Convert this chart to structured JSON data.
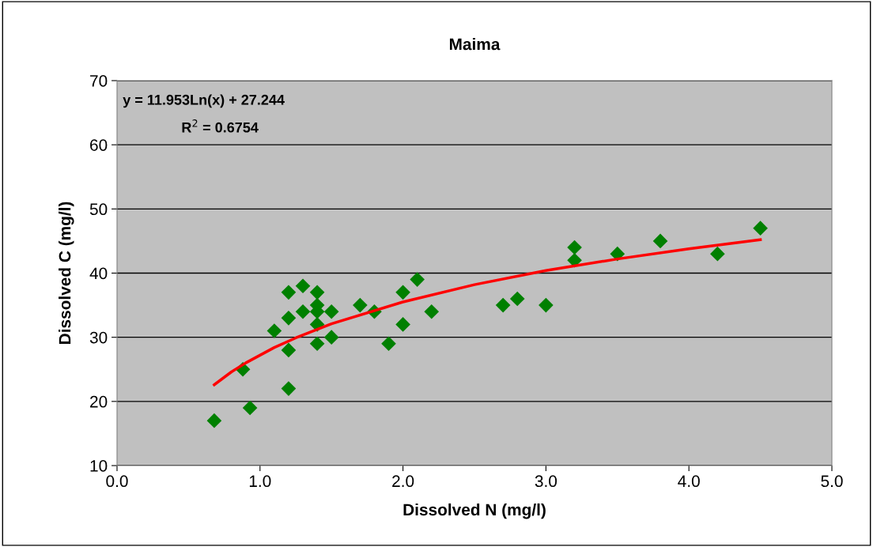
{
  "chart_data": {
    "type": "scatter",
    "title": "Maima",
    "xlabel": "Dissolved N (mg/l)",
    "ylabel": "Dissolved C (mg/l)",
    "xlim": [
      0,
      5
    ],
    "xticks": [
      {
        "value": 0,
        "label": "0.0"
      },
      {
        "value": 1,
        "label": "1.0"
      },
      {
        "value": 2,
        "label": "2.0"
      },
      {
        "value": 3,
        "label": "3.0"
      },
      {
        "value": 4,
        "label": "4.0"
      },
      {
        "value": 5,
        "label": "5.0"
      }
    ],
    "ylim": [
      10,
      70
    ],
    "yticks": [
      10,
      20,
      30,
      40,
      50,
      60,
      70
    ],
    "grid": "y",
    "legend": false,
    "annotations": [
      "y = 11.953Ln(x) + 27.244",
      "R$^{2}$ = 0.6754"
    ],
    "series": [
      {
        "color": "#008000",
        "marker": "diamond",
        "x": [
          0.68,
          0.88,
          0.93,
          1.1,
          1.2,
          1.2,
          1.2,
          1.2,
          1.3,
          1.3,
          1.4,
          1.4,
          1.4,
          1.4,
          1.4,
          1.5,
          1.5,
          1.7,
          1.8,
          1.9,
          2.0,
          2.0,
          2.1,
          2.2,
          2.7,
          2.8,
          3.0,
          3.2,
          3.2,
          3.5,
          3.8,
          4.2,
          4.5
        ],
        "values": [
          17,
          25,
          19,
          31,
          37,
          33,
          28,
          22,
          38,
          34,
          37,
          35,
          34,
          32,
          29,
          34,
          30,
          35,
          34,
          29,
          37,
          32,
          39,
          34,
          35,
          36,
          35,
          44,
          42,
          43,
          45,
          43,
          47
        ]
      },
      {
        "type": "line",
        "color": "#ff0000",
        "marker": "none",
        "line_style": "solid",
        "x": [
          0.68,
          0.8,
          0.9,
          1.0,
          1.1,
          1.25,
          1.5,
          2.0,
          2.5,
          3.0,
          3.5,
          4.0,
          4.5
        ],
        "values": [
          22.6,
          24.6,
          26.0,
          27.2,
          28.4,
          29.9,
          32.1,
          35.5,
          38.2,
          40.4,
          42.2,
          43.8,
          45.2
        ]
      }
    ]
  }
}
